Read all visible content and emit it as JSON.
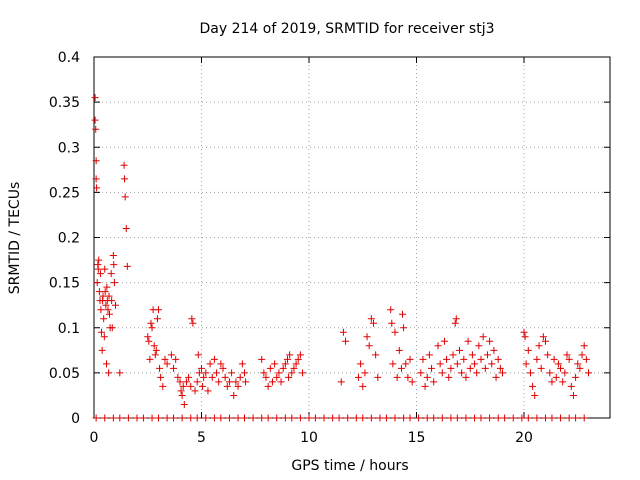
{
  "chart_data": {
    "type": "scatter",
    "title": "Day 214 of 2019, SRMTID for receiver stj3",
    "xlabel": "GPS time / hours",
    "ylabel": "SRMTID / TECUs",
    "xlim": [
      0,
      24
    ],
    "ylim": [
      0,
      0.4
    ],
    "xticks": [
      0,
      5,
      10,
      15,
      20
    ],
    "xtick_labels": [
      "0",
      "5",
      "10",
      "15",
      "20"
    ],
    "yticks": [
      0,
      0.05,
      0.1,
      0.15,
      0.2,
      0.25,
      0.3,
      0.35,
      0.4
    ],
    "ytick_labels": [
      "0",
      "0.05",
      "0.1",
      "0.15",
      "0.2",
      "0.25",
      "0.3",
      "0.35",
      "0.4"
    ],
    "grid": true,
    "marker": "plus",
    "marker_color": "#e00000",
    "series": [
      {
        "name": "SRMTID",
        "points": [
          [
            0.05,
            0.355
          ],
          [
            0.05,
            0.33
          ],
          [
            0.08,
            0.32
          ],
          [
            0.1,
            0.285
          ],
          [
            0.1,
            0.265
          ],
          [
            0.12,
            0.255
          ],
          [
            0.15,
            0.15
          ],
          [
            0.18,
            0.17
          ],
          [
            0.2,
            0.165
          ],
          [
            0.22,
            0.175
          ],
          [
            0.25,
            0.14
          ],
          [
            0.28,
            0.13
          ],
          [
            0.3,
            0.16
          ],
          [
            0.32,
            0.12
          ],
          [
            0.35,
            0.095
          ],
          [
            0.38,
            0.075
          ],
          [
            0.4,
            0.13
          ],
          [
            0.42,
            0.135
          ],
          [
            0.45,
            0.11
          ],
          [
            0.48,
            0.09
          ],
          [
            0.5,
            0.165
          ],
          [
            0.52,
            0.14
          ],
          [
            0.55,
            0.125
          ],
          [
            0.58,
            0.06
          ],
          [
            0.6,
            0.145
          ],
          [
            0.62,
            0.13
          ],
          [
            0.65,
            0.12
          ],
          [
            0.68,
            0.05
          ],
          [
            0.7,
            0.135
          ],
          [
            0.72,
            0.115
          ],
          [
            0.75,
            0.1
          ],
          [
            0.8,
            0.16
          ],
          [
            0.82,
            0.13
          ],
          [
            0.85,
            0.1
          ],
          [
            0.9,
            0.18
          ],
          [
            0.92,
            0.17
          ],
          [
            0.95,
            0.15
          ],
          [
            1.0,
            0.125
          ],
          [
            1.2,
            0.05
          ],
          [
            1.4,
            0.28
          ],
          [
            1.42,
            0.265
          ],
          [
            1.45,
            0.245
          ],
          [
            1.5,
            0.21
          ],
          [
            1.55,
            0.168
          ],
          [
            2.5,
            0.09
          ],
          [
            2.55,
            0.085
          ],
          [
            2.6,
            0.065
          ],
          [
            2.65,
            0.105
          ],
          [
            2.7,
            0.1
          ],
          [
            2.75,
            0.12
          ],
          [
            2.8,
            0.08
          ],
          [
            2.85,
            0.07
          ],
          [
            2.9,
            0.075
          ],
          [
            2.95,
            0.11
          ],
          [
            3.0,
            0.12
          ],
          [
            3.05,
            0.055
          ],
          [
            3.1,
            0.045
          ],
          [
            3.2,
            0.035
          ],
          [
            3.3,
            0.065
          ],
          [
            3.4,
            0.06
          ],
          [
            3.6,
            0.07
          ],
          [
            3.7,
            0.055
          ],
          [
            3.8,
            0.065
          ],
          [
            3.9,
            0.045
          ],
          [
            4.0,
            0.04
          ],
          [
            4.05,
            0.03
          ],
          [
            4.1,
            0.025
          ],
          [
            4.15,
            0.035
          ],
          [
            4.2,
            0.015
          ],
          [
            4.3,
            0.04
          ],
          [
            4.4,
            0.045
          ],
          [
            4.5,
            0.035
          ],
          [
            4.55,
            0.11
          ],
          [
            4.6,
            0.105
          ],
          [
            4.7,
            0.03
          ],
          [
            4.8,
            0.04
          ],
          [
            4.85,
            0.07
          ],
          [
            4.9,
            0.05
          ],
          [
            5.0,
            0.055
          ],
          [
            5.05,
            0.035
          ],
          [
            5.1,
            0.045
          ],
          [
            5.2,
            0.05
          ],
          [
            5.3,
            0.03
          ],
          [
            5.4,
            0.06
          ],
          [
            5.5,
            0.045
          ],
          [
            5.6,
            0.065
          ],
          [
            5.7,
            0.05
          ],
          [
            5.8,
            0.04
          ],
          [
            5.9,
            0.06
          ],
          [
            6.0,
            0.055
          ],
          [
            6.1,
            0.045
          ],
          [
            6.2,
            0.035
          ],
          [
            6.3,
            0.04
          ],
          [
            6.4,
            0.05
          ],
          [
            6.5,
            0.025
          ],
          [
            6.6,
            0.04
          ],
          [
            6.7,
            0.035
          ],
          [
            6.8,
            0.045
          ],
          [
            6.9,
            0.06
          ],
          [
            7.0,
            0.05
          ],
          [
            7.05,
            0.04
          ],
          [
            7.8,
            0.065
          ],
          [
            7.9,
            0.05
          ],
          [
            8.0,
            0.045
          ],
          [
            8.1,
            0.035
          ],
          [
            8.2,
            0.055
          ],
          [
            8.3,
            0.04
          ],
          [
            8.4,
            0.06
          ],
          [
            8.5,
            0.045
          ],
          [
            8.6,
            0.05
          ],
          [
            8.7,
            0.04
          ],
          [
            8.8,
            0.055
          ],
          [
            8.9,
            0.06
          ],
          [
            9.0,
            0.065
          ],
          [
            9.05,
            0.045
          ],
          [
            9.1,
            0.07
          ],
          [
            9.2,
            0.05
          ],
          [
            9.3,
            0.055
          ],
          [
            9.4,
            0.06
          ],
          [
            9.5,
            0.065
          ],
          [
            9.6,
            0.07
          ],
          [
            9.7,
            0.05
          ],
          [
            11.5,
            0.04
          ],
          [
            11.6,
            0.095
          ],
          [
            11.7,
            0.085
          ],
          [
            12.3,
            0.045
          ],
          [
            12.4,
            0.06
          ],
          [
            12.5,
            0.035
          ],
          [
            12.6,
            0.05
          ],
          [
            12.7,
            0.09
          ],
          [
            12.8,
            0.08
          ],
          [
            12.9,
            0.11
          ],
          [
            13.0,
            0.105
          ],
          [
            13.1,
            0.07
          ],
          [
            13.2,
            0.045
          ],
          [
            13.8,
            0.12
          ],
          [
            13.85,
            0.105
          ],
          [
            13.9,
            0.06
          ],
          [
            14.0,
            0.095
          ],
          [
            14.1,
            0.045
          ],
          [
            14.2,
            0.075
          ],
          [
            14.3,
            0.055
          ],
          [
            14.35,
            0.115
          ],
          [
            14.4,
            0.1
          ],
          [
            14.5,
            0.06
          ],
          [
            14.6,
            0.045
          ],
          [
            14.7,
            0.065
          ],
          [
            14.8,
            0.04
          ],
          [
            15.2,
            0.05
          ],
          [
            15.3,
            0.065
          ],
          [
            15.4,
            0.035
          ],
          [
            15.5,
            0.045
          ],
          [
            15.6,
            0.07
          ],
          [
            15.7,
            0.055
          ],
          [
            15.8,
            0.04
          ],
          [
            16.0,
            0.08
          ],
          [
            16.1,
            0.06
          ],
          [
            16.2,
            0.05
          ],
          [
            16.3,
            0.085
          ],
          [
            16.4,
            0.065
          ],
          [
            16.5,
            0.045
          ],
          [
            16.6,
            0.055
          ],
          [
            16.7,
            0.07
          ],
          [
            16.8,
            0.105
          ],
          [
            16.85,
            0.11
          ],
          [
            16.9,
            0.06
          ],
          [
            17.0,
            0.075
          ],
          [
            17.1,
            0.05
          ],
          [
            17.2,
            0.065
          ],
          [
            17.3,
            0.045
          ],
          [
            17.4,
            0.085
          ],
          [
            17.5,
            0.055
          ],
          [
            17.6,
            0.07
          ],
          [
            17.7,
            0.06
          ],
          [
            17.8,
            0.05
          ],
          [
            17.9,
            0.08
          ],
          [
            18.0,
            0.065
          ],
          [
            18.1,
            0.09
          ],
          [
            18.2,
            0.055
          ],
          [
            18.3,
            0.07
          ],
          [
            18.4,
            0.085
          ],
          [
            18.5,
            0.06
          ],
          [
            18.6,
            0.075
          ],
          [
            18.7,
            0.045
          ],
          [
            18.8,
            0.065
          ],
          [
            18.9,
            0.055
          ],
          [
            19.0,
            0.05
          ],
          [
            20.0,
            0.095
          ],
          [
            20.05,
            0.09
          ],
          [
            20.1,
            0.06
          ],
          [
            20.2,
            0.075
          ],
          [
            20.3,
            0.05
          ],
          [
            20.4,
            0.035
          ],
          [
            20.5,
            0.025
          ],
          [
            20.6,
            0.065
          ],
          [
            20.7,
            0.08
          ],
          [
            20.8,
            0.055
          ],
          [
            20.9,
            0.09
          ],
          [
            21.0,
            0.085
          ],
          [
            21.1,
            0.07
          ],
          [
            21.2,
            0.05
          ],
          [
            21.3,
            0.04
          ],
          [
            21.4,
            0.065
          ],
          [
            21.5,
            0.045
          ],
          [
            21.6,
            0.06
          ],
          [
            21.7,
            0.055
          ],
          [
            21.8,
            0.04
          ],
          [
            21.9,
            0.05
          ],
          [
            22.0,
            0.07
          ],
          [
            22.1,
            0.065
          ],
          [
            22.2,
            0.035
          ],
          [
            22.3,
            0.025
          ],
          [
            22.4,
            0.045
          ],
          [
            22.5,
            0.06
          ],
          [
            22.6,
            0.055
          ],
          [
            22.7,
            0.07
          ],
          [
            22.8,
            0.08
          ],
          [
            22.9,
            0.065
          ],
          [
            23.0,
            0.05
          ],
          [
            0.1,
            0
          ],
          [
            0.5,
            0
          ],
          [
            0.9,
            0
          ],
          [
            1.2,
            0
          ],
          [
            1.6,
            0
          ],
          [
            2.0,
            0
          ],
          [
            2.3,
            0
          ],
          [
            2.7,
            0
          ],
          [
            3.0,
            0
          ],
          [
            3.4,
            0
          ],
          [
            3.7,
            0
          ],
          [
            4.1,
            0
          ],
          [
            4.5,
            0
          ],
          [
            4.8,
            0
          ],
          [
            5.2,
            0
          ],
          [
            5.6,
            0
          ],
          [
            5.9,
            0
          ],
          [
            6.3,
            0
          ],
          [
            6.7,
            0
          ],
          [
            7.0,
            0
          ],
          [
            7.4,
            0
          ],
          [
            7.8,
            0
          ],
          [
            8.1,
            0
          ],
          [
            8.5,
            0
          ],
          [
            8.9,
            0
          ],
          [
            9.2,
            0
          ],
          [
            9.6,
            0
          ],
          [
            10.0,
            0
          ],
          [
            10.3,
            0
          ],
          [
            10.7,
            0
          ],
          [
            11.1,
            0
          ],
          [
            11.4,
            0
          ],
          [
            11.8,
            0
          ],
          [
            12.2,
            0
          ],
          [
            12.5,
            0
          ],
          [
            12.9,
            0
          ],
          [
            13.3,
            0
          ],
          [
            13.6,
            0
          ],
          [
            14.0,
            0
          ],
          [
            14.4,
            0
          ],
          [
            14.7,
            0
          ],
          [
            15.1,
            0
          ],
          [
            15.5,
            0
          ],
          [
            15.8,
            0
          ],
          [
            16.2,
            0
          ],
          [
            16.6,
            0
          ],
          [
            16.9,
            0
          ],
          [
            17.3,
            0
          ],
          [
            17.7,
            0
          ],
          [
            18.0,
            0
          ],
          [
            18.4,
            0
          ],
          [
            18.8,
            0
          ],
          [
            19.1,
            0
          ],
          [
            19.5,
            0
          ],
          [
            19.9,
            0
          ],
          [
            20.2,
            0
          ],
          [
            20.6,
            0
          ],
          [
            21.0,
            0
          ],
          [
            21.3,
            0
          ],
          [
            21.7,
            0
          ],
          [
            22.1,
            0
          ],
          [
            22.4,
            0
          ],
          [
            22.8,
            0
          ]
        ]
      }
    ]
  }
}
